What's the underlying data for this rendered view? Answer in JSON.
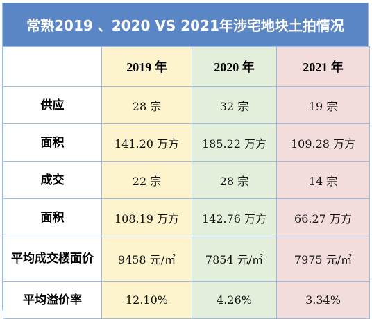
{
  "title": "常熟2019 、2020 VS 2021年涉宅地块土拍情况",
  "table": {
    "headers": [
      "",
      "2019 年",
      "2020 年",
      "2021 年"
    ],
    "rows": [
      {
        "label": "供应",
        "values": [
          "28 宗",
          "32 宗",
          "19 宗"
        ]
      },
      {
        "label": "面积",
        "values": [
          "141.20 万方",
          "185.22 万方",
          "109.28 万方"
        ]
      },
      {
        "label": "成交",
        "values": [
          "22 宗",
          "28 宗",
          "14 宗"
        ]
      },
      {
        "label": "面积",
        "values": [
          "108.19 万方",
          "142.76 万方",
          "66.27 万方"
        ]
      },
      {
        "label": "平均成交楼面价",
        "values": [
          "9458 元/㎡",
          "7854 元/㎡",
          "7975 元/㎡"
        ]
      },
      {
        "label": "平均溢价率",
        "values": [
          "12.10%",
          "4.26%",
          "3.34%"
        ]
      }
    ]
  },
  "colors": {
    "title_bg": "#5b86c5",
    "col_2019": "#fdf3cd",
    "col_2020": "#e3efdb",
    "col_2021": "#f3dcdc",
    "border": "#9dbbe0"
  }
}
